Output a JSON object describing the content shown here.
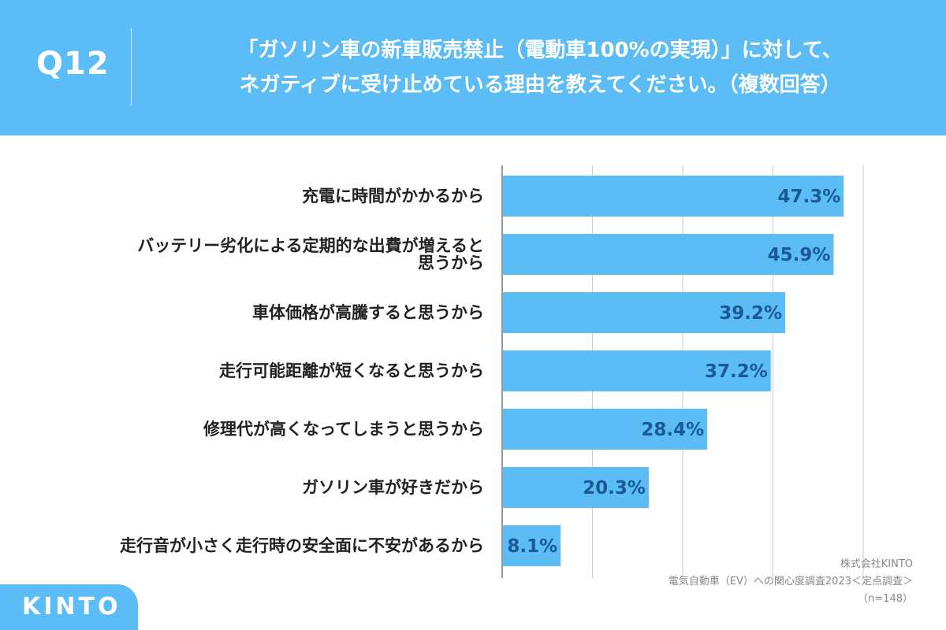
{
  "header": {
    "question_number": "Q12",
    "title_line1": "「ガソリン車の新車販売禁止（電動車100%の実現）」に対して、",
    "title_line2": "ネガティブに受け止めている理由を教えてください。（複数回答）"
  },
  "colors": {
    "background": "#5bbcf6",
    "bar": "#5bbcf6",
    "value_text": "#1a5a94"
  },
  "chart_data": {
    "type": "bar",
    "orientation": "horizontal",
    "categories": [
      [
        "充電に時間がかかるから"
      ],
      [
        "バッテリー劣化による定期的な出費が増えると",
        "思うから"
      ],
      [
        "車体価格が高騰すると思うから"
      ],
      [
        "走行可能距離が短くなると思うから"
      ],
      [
        "修理代が高くなってしまうと思うから"
      ],
      [
        "ガソリン車が好きだから"
      ],
      [
        "走行音が小さく走行時の安全面に不安があるから"
      ]
    ],
    "values": [
      47.3,
      45.9,
      39.2,
      37.2,
      28.4,
      20.3,
      8.1
    ],
    "value_labels": [
      "47.3%",
      "45.9%",
      "39.2%",
      "37.2%",
      "28.4%",
      "20.3%",
      "8.1%"
    ],
    "unit": "%",
    "xlim": [
      0,
      50
    ],
    "gridlines": [
      0,
      12.5,
      25,
      37.5,
      50
    ],
    "grid": true
  },
  "source": {
    "company": "株式会社KINTO",
    "survey": "電気自動車（EV）への関心度調査2023＜定点調査＞",
    "sample": "（n=148）"
  },
  "logo": {
    "text": "KINTO"
  }
}
